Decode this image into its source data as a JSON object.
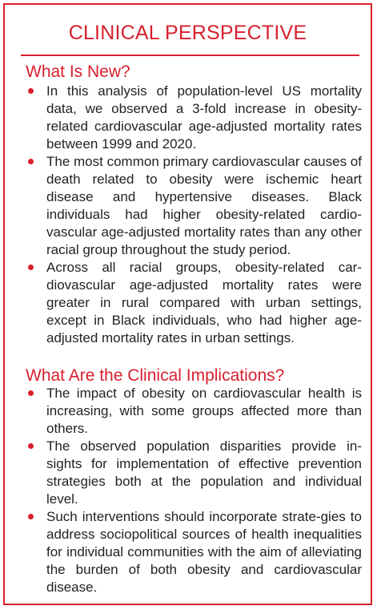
{
  "title": "CLINICAL PERSPECTIVE",
  "colors": {
    "accent": "#d7202e",
    "text": "#231f20"
  },
  "sections": [
    {
      "heading": "What Is New?",
      "bullets": [
        "In this analysis of population-level US mortality data, we observed a 3-fold increase in obesity-related cardiovascular age-adjusted mortality rates between 1999 and 2020.",
        "The most common primary cardiovascular causes of death related to obesity were ischemic heart disease and hypertensive diseases. Black individuals had higher obesity-related cardio-vascular age-adjusted mortality rates than any other racial group throughout the study period.",
        "Across all racial groups, obesity-related car-diovascular age-adjusted mortality rates were greater in rural compared with urban settings, except in Black individuals, who had higher age-adjusted mortality rates in urban settings."
      ]
    },
    {
      "heading": "What Are the Clinical Implications?",
      "bullets": [
        "The impact of obesity on cardiovascular health is increasing, with some groups affected more than others.",
        "The observed population disparities provide in-sights for implementation of effective prevention strategies both at the population and individual level.",
        "Such interventions should incorporate strate-gies to address sociopolitical sources of health inequalities for individual communities with the aim of alleviating the burden of both obesity and cardiovascular disease."
      ]
    }
  ]
}
